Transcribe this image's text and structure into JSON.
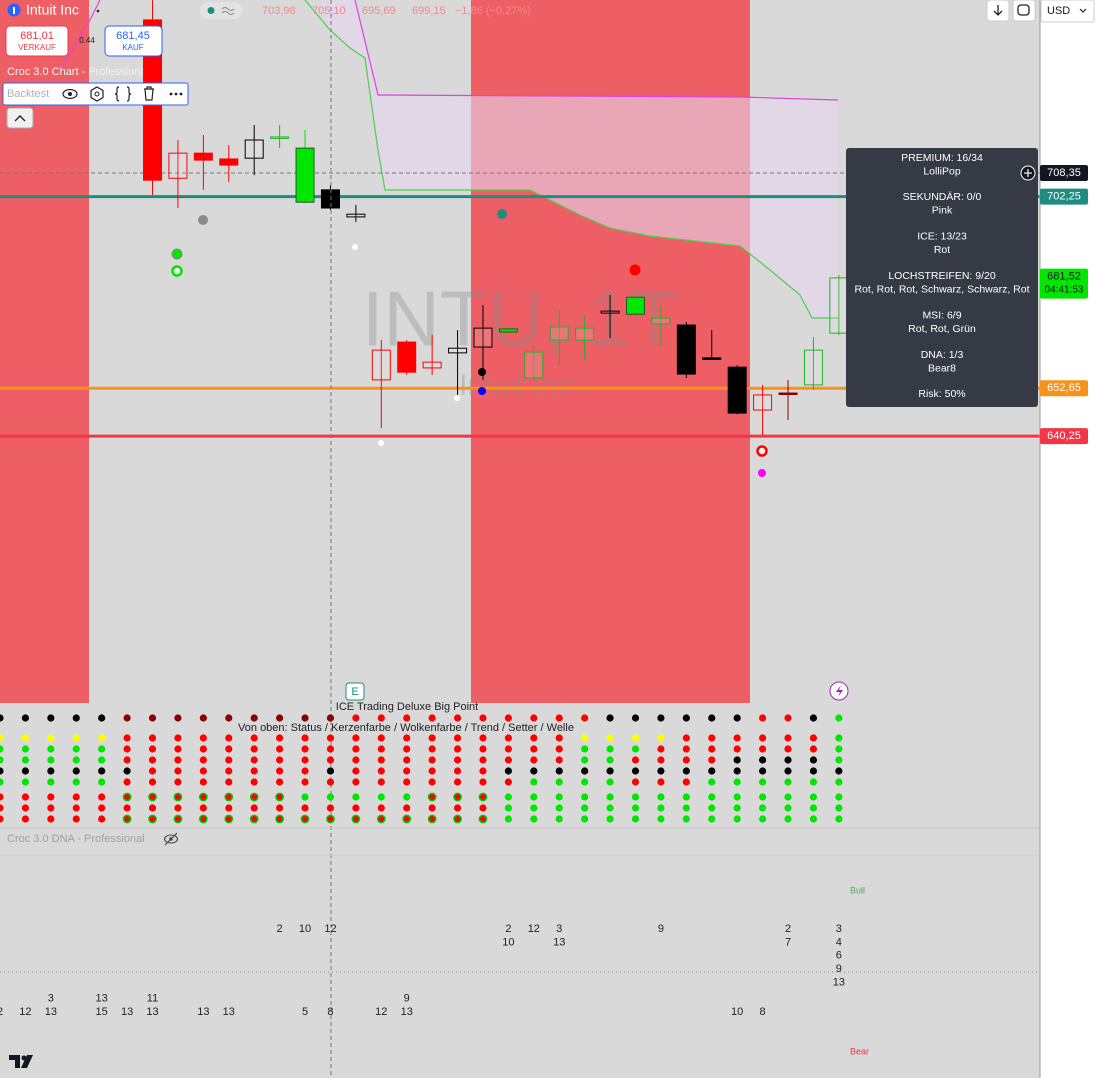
{
  "header": {
    "symbol": "Intuit Inc",
    "ohlc": [
      "703,98",
      "705,10",
      "695,69",
      "699,15"
    ],
    "change": "−1,86 (−0,27%)"
  },
  "trade": {
    "sell_price": "681,01",
    "sell_label": "VERKAUF",
    "spread": "0.44",
    "buy_price": "681,45",
    "buy_label": "KAUF"
  },
  "indicator": {
    "name": "Croc 3.0 Chart - Professional",
    "backtest": "Backtest"
  },
  "toolbar": {
    "currency": "USD"
  },
  "watermark": {
    "ticker": "INTU, 1T",
    "name": "Intuit Inc."
  },
  "chart": {
    "type": "candlestick",
    "ylim": [
      571.15,
      753.15
    ],
    "price_labels": [
      {
        "value": 708.35,
        "label": "708,35",
        "color": "#131722",
        "style": "dashed"
      },
      {
        "value": 702.25,
        "label": "702,25",
        "color": "#1e8c7e",
        "style": "solid"
      },
      {
        "value": 681.52,
        "label": "681,52",
        "color": "#00e600",
        "style": "none",
        "countdown": "04:41:53"
      },
      {
        "value": 652.65,
        "label": "652,65",
        "color": "#f7931a",
        "style": "solid"
      },
      {
        "value": 640.25,
        "label": "640,25",
        "color": "#f23645",
        "style": "solid"
      }
    ],
    "candles": [
      {
        "open": 748.0,
        "high": 753.1,
        "low": 702.7,
        "close": 706.5,
        "color": "#ff0000",
        "hollow": false
      },
      {
        "open": 713.5,
        "high": 716.9,
        "low": 699.3,
        "close": 707.0,
        "color": "#ff0000",
        "hollow": true
      },
      {
        "open": 713.5,
        "high": 718.2,
        "low": 704.0,
        "close": 711.7,
        "color": "#ff0000",
        "hollow": false
      },
      {
        "open": 712.0,
        "high": 715.6,
        "low": 706.0,
        "close": 710.4,
        "color": "#ff0000",
        "hollow": false
      },
      {
        "open": 712.2,
        "high": 720.8,
        "low": 707.8,
        "close": 716.9,
        "color": "#000000",
        "hollow": true
      },
      {
        "open": 717.6,
        "high": 720.8,
        "low": 714.8,
        "close": 717.7,
        "color": "#22b422",
        "hollow": true
      },
      {
        "open": 700.8,
        "high": 719.5,
        "low": 700.6,
        "close": 714.8,
        "color": "#00e600",
        "hollow": false
      },
      {
        "open": 704.0,
        "high": 705.2,
        "low": 698.8,
        "close": 699.3,
        "color": "#000000",
        "hollow": false
      },
      {
        "open": 697.7,
        "high": 700.1,
        "low": 695.7,
        "close": 697.0,
        "color": "#000000",
        "hollow": true
      },
      {
        "open": 662.5,
        "high": 665.1,
        "low": 642.3,
        "close": 654.8,
        "color": "#ff0000",
        "hollow": true
      },
      {
        "open": 664.6,
        "high": 665.1,
        "low": 656.1,
        "close": 656.8,
        "color": "#ff0000",
        "hollow": false
      },
      {
        "open": 659.4,
        "high": 666.4,
        "low": 656.1,
        "close": 657.9,
        "color": "#ff0000",
        "hollow": true
      },
      {
        "open": 661.8,
        "high": 667.7,
        "low": 650.9,
        "close": 663.0,
        "color": "#000000",
        "hollow": true
      },
      {
        "open": 663.3,
        "high": 674.2,
        "low": 654.8,
        "close": 668.2,
        "color": "#000000",
        "hollow": true
      },
      {
        "open": 667.2,
        "high": 668.2,
        "low": 667.0,
        "close": 668.0,
        "color": "#00e600",
        "hollow": false
      },
      {
        "open": 655.3,
        "high": 663.8,
        "low": 654.8,
        "close": 662.0,
        "color": "#22b422",
        "hollow": true
      },
      {
        "open": 665.1,
        "high": 672.9,
        "low": 658.6,
        "close": 668.5,
        "color": "#22b422",
        "hollow": true
      },
      {
        "open": 665.1,
        "high": 671.6,
        "low": 660.0,
        "close": 668.2,
        "color": "#22b422",
        "hollow": true
      },
      {
        "open": 672.1,
        "high": 676.8,
        "low": 665.6,
        "close": 672.6,
        "color": "#000000",
        "hollow": true
      },
      {
        "open": 671.8,
        "high": 679.9,
        "low": 670.3,
        "close": 676.2,
        "color": "#00e600",
        "hollow": false
      },
      {
        "open": 669.3,
        "high": 674.2,
        "low": 663.8,
        "close": 670.8,
        "color": "#22b422",
        "hollow": true
      },
      {
        "open": 669.0,
        "high": 669.8,
        "low": 655.3,
        "close": 656.3,
        "color": "#000000",
        "hollow": false
      },
      {
        "open": 660.5,
        "high": 667.7,
        "low": 660.0,
        "close": 660.2,
        "color": "#000000",
        "hollow": false
      },
      {
        "open": 658.1,
        "high": 658.6,
        "low": 645.9,
        "close": 646.2,
        "color": "#000000",
        "hollow": false
      },
      {
        "open": 650.9,
        "high": 653.5,
        "low": 640.5,
        "close": 647.0,
        "color": "#ff0000",
        "hollow": true
      },
      {
        "open": 651.4,
        "high": 654.8,
        "low": 644.4,
        "close": 651.1,
        "color": "#8b0000",
        "hollow": false
      },
      {
        "open": 653.5,
        "high": 665.9,
        "low": 652.2,
        "close": 662.5,
        "color": "#22b422",
        "hollow": true
      },
      {
        "open": 666.9,
        "high": 682.0,
        "low": 666.4,
        "close": 681.2,
        "color": "#22b422",
        "hollow": true
      }
    ]
  },
  "tooltip": [
    {
      "head": "PREMIUM: 16/34",
      "sub": "LolliPop"
    },
    {
      "head": "SEKUNDÄR: 0/0",
      "sub": "Pink"
    },
    {
      "head": "ICE: 13/23",
      "sub": "Rot"
    },
    {
      "head": "LOCHSTREIFEN: 9/20",
      "sub": "Rot, Rot, Rot, Schwarz, Schwarz, Rot"
    },
    {
      "head": "MSI: 6/9",
      "sub": "Rot, Rot, Grün"
    },
    {
      "head": "DNA: 1/3",
      "sub": "Bear8"
    },
    {
      "head": "Risk: 50%"
    }
  ],
  "ice_panel": {
    "icon": "E",
    "title": "ICE Trading Deluxe Big Point",
    "legend": "Von oben: Status / Kerzenfarbe / Wolkenfarbe / Trend / Setter / Welle"
  },
  "dna_panel": {
    "title": "Croc 3.0 DNA - Professional",
    "bull": "Bull",
    "bear": "Bear",
    "upper": [
      null,
      null,
      null,
      null,
      null,
      null,
      null,
      null,
      null,
      null,
      null,
      [
        2
      ],
      [
        10
      ],
      [
        12
      ],
      null,
      null,
      null,
      null,
      null,
      null,
      [
        2,
        10
      ],
      [
        12
      ],
      [
        3,
        13
      ],
      null,
      null,
      null,
      [
        9
      ],
      null,
      null,
      null,
      null,
      [
        2,
        7
      ],
      null,
      [
        3,
        4,
        6,
        9,
        13
      ]
    ],
    "lower": [
      [
        2
      ],
      [
        12
      ],
      [
        3,
        13
      ],
      null,
      [
        13,
        15
      ],
      [
        13
      ],
      [
        11,
        13
      ],
      null,
      [
        13
      ],
      [
        13
      ],
      null,
      null,
      [
        5
      ],
      [
        8
      ],
      null,
      [
        12
      ],
      [
        9,
        13
      ],
      null,
      null,
      null,
      null,
      null,
      null,
      null,
      null,
      null,
      null,
      null,
      null,
      [
        10
      ],
      [
        8
      ],
      null,
      null,
      null
    ]
  }
}
